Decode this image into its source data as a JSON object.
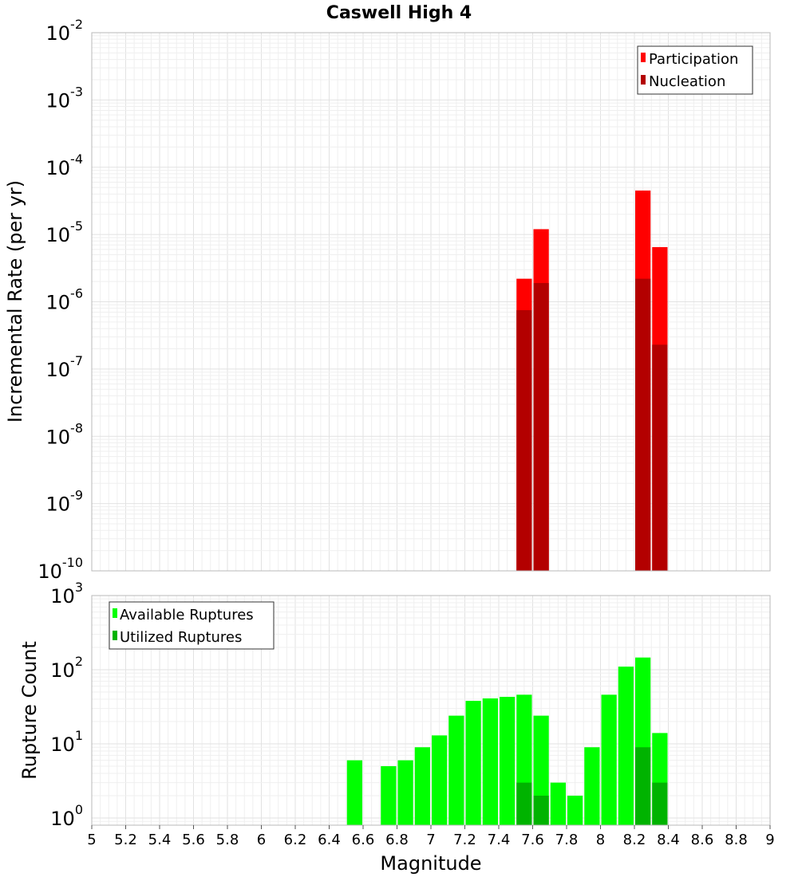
{
  "title": "Caswell High 4",
  "chart_data": [
    {
      "type": "bar",
      "panel": "rate",
      "ylabel": "Incremental Rate (per yr)",
      "yscale": "log",
      "ylim": [
        1e-10,
        0.01
      ],
      "xlim": [
        5,
        9
      ],
      "bar_width": 0.1,
      "legend": "top-right",
      "grid": true,
      "series": [
        {
          "name": "Participation",
          "color": "#ff0000",
          "x": [
            7.55,
            7.65,
            8.25,
            8.35
          ],
          "values": [
            2.2e-06,
            1.2e-05,
            4.5e-05,
            6.5e-06
          ]
        },
        {
          "name": "Nucleation",
          "color": "#b30000",
          "x": [
            7.55,
            7.65,
            8.25,
            8.35
          ],
          "values": [
            7.5e-07,
            1.9e-06,
            2.2e-06,
            2.3e-07
          ]
        }
      ]
    },
    {
      "type": "bar",
      "panel": "count",
      "ylabel": "Rupture Count",
      "xlabel": "Magnitude",
      "yscale": "log",
      "ylim": [
        0.8,
        1000
      ],
      "xlim": [
        5,
        9
      ],
      "bar_width": 0.1,
      "legend": "top-left",
      "grid": true,
      "series": [
        {
          "name": "Available Ruptures",
          "color": "#00ff00",
          "x": [
            6.55,
            6.75,
            6.85,
            6.95,
            7.05,
            7.15,
            7.25,
            7.35,
            7.45,
            7.55,
            7.65,
            7.75,
            7.85,
            7.95,
            8.05,
            8.15,
            8.25,
            8.35
          ],
          "values": [
            6,
            5,
            6,
            9,
            13,
            24,
            38,
            41,
            43,
            46,
            24,
            3,
            2,
            9,
            46,
            110,
            146,
            14
          ]
        },
        {
          "name": "Utilized Ruptures",
          "color": "#00b300",
          "x": [
            7.55,
            7.65,
            8.25,
            8.35
          ],
          "values": [
            3,
            2,
            9,
            3
          ]
        }
      ]
    }
  ],
  "x_ticks": [
    "5",
    "5.2",
    "5.4",
    "5.6",
    "5.8",
    "6",
    "6.2",
    "6.4",
    "6.6",
    "6.8",
    "7",
    "7.2",
    "7.4",
    "7.6",
    "7.8",
    "8",
    "8.2",
    "8.4",
    "8.6",
    "8.8",
    "9"
  ],
  "rate_yticks": [
    {
      "base": "10",
      "exp": "-10"
    },
    {
      "base": "10",
      "exp": "-9"
    },
    {
      "base": "10",
      "exp": "-8"
    },
    {
      "base": "10",
      "exp": "-7"
    },
    {
      "base": "10",
      "exp": "-6"
    },
    {
      "base": "10",
      "exp": "-5"
    },
    {
      "base": "10",
      "exp": "-4"
    },
    {
      "base": "10",
      "exp": "-3"
    },
    {
      "base": "10",
      "exp": "-2"
    }
  ],
  "count_yticks": [
    {
      "base": "10",
      "exp": "0"
    },
    {
      "base": "10",
      "exp": "1"
    },
    {
      "base": "10",
      "exp": "2"
    },
    {
      "base": "10",
      "exp": "3"
    }
  ]
}
